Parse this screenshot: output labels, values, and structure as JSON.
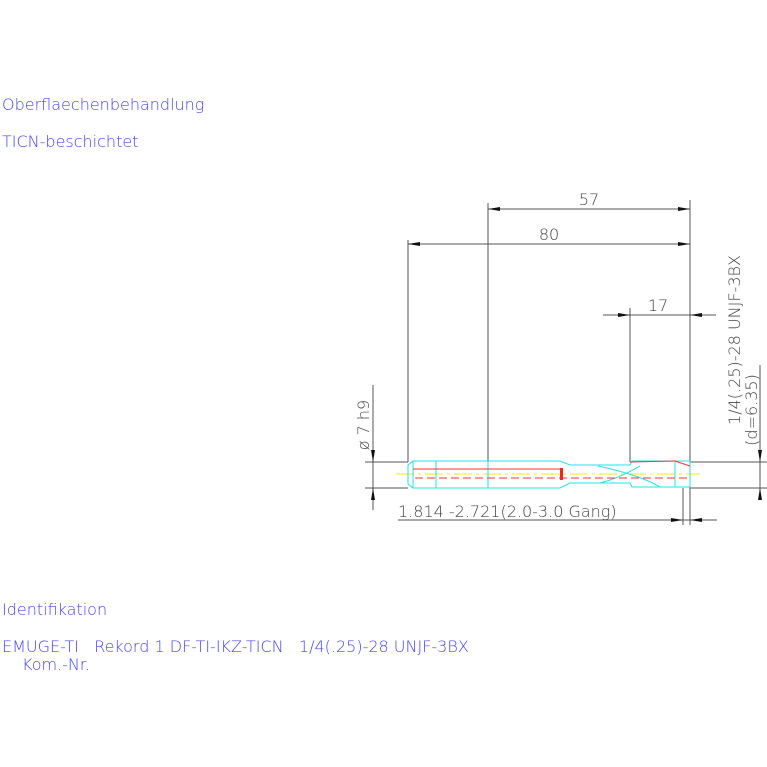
{
  "notes": {
    "surface_heading": "Oberflaechenbehandlung",
    "surface_value": "TICN-beschichtet",
    "ident_heading": "Identifikation",
    "ident_value": "EMUGE-TI   Rekord 1 DF-TI-IKZ-TICN   1/4(.25)-28 UNJF-3BX",
    "kom_nr": "Kom.-Nr."
  },
  "dimensions": {
    "length_57": "57",
    "length_80": "80",
    "length_17": "17",
    "shank_diameter": "ø 7 h9",
    "thread": "1/4(.25)-28 UNJF-3BX",
    "thread_d": "(d=6.35)",
    "chamfer": "1.814 -2.721(2.0-3.0 Gang)"
  },
  "colors": {
    "text": "#4646ff",
    "tool_outline": "#22e0e8",
    "hidden_lines": "#ff3030",
    "center_line": "#f0f000",
    "dimension_lines": "#555555"
  }
}
